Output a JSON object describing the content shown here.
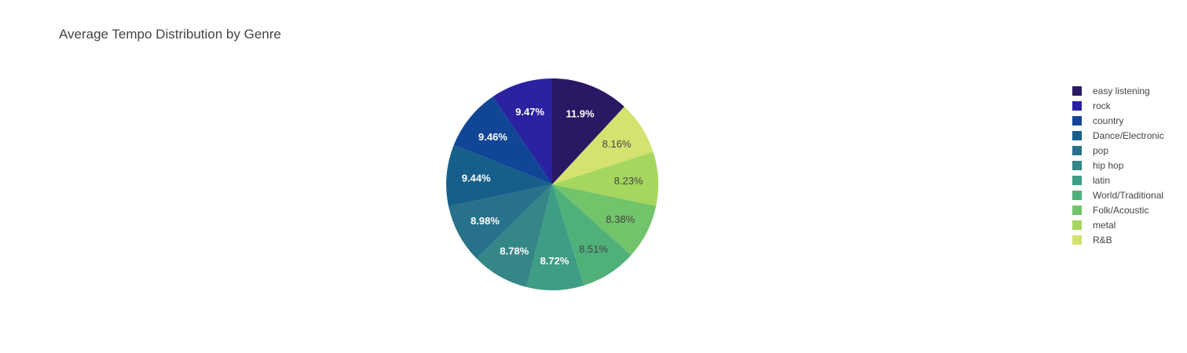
{
  "chart_data": {
    "type": "pie",
    "title": "Average Tempo Distribution by Genre",
    "legend_position": "right",
    "direction": "clockwise",
    "start": "top",
    "slices": [
      {
        "label": "easy listening",
        "percent": 11.9,
        "text": "11.9%",
        "color": "#2a1864",
        "text_color": "#ffffff"
      },
      {
        "label": "R&B",
        "percent": 8.16,
        "text": "8.16%",
        "color": "#d4e270",
        "text_color": "#444444"
      },
      {
        "label": "metal",
        "percent": 8.23,
        "text": "8.23%",
        "color": "#a5d65e",
        "text_color": "#444444"
      },
      {
        "label": "Folk/Acoustic",
        "percent": 8.38,
        "text": "8.38%",
        "color": "#72c46a",
        "text_color": "#444444"
      },
      {
        "label": "World/Traditional",
        "percent": 8.51,
        "text": "8.51%",
        "color": "#50b07a",
        "text_color": "#444444"
      },
      {
        "label": "latin",
        "percent": 8.72,
        "text": "8.72%",
        "color": "#3f9c85",
        "text_color": "#ffffff"
      },
      {
        "label": "hip hop",
        "percent": 8.78,
        "text": "8.78%",
        "color": "#348786",
        "text_color": "#ffffff"
      },
      {
        "label": "pop",
        "percent": 8.98,
        "text": "8.98%",
        "color": "#27728a",
        "text_color": "#ffffff"
      },
      {
        "label": "Dance/Electronic",
        "percent": 9.44,
        "text": "9.44%",
        "color": "#175f8b",
        "text_color": "#ffffff"
      },
      {
        "label": "country",
        "percent": 9.46,
        "text": "9.46%",
        "color": "#114696",
        "text_color": "#ffffff"
      },
      {
        "label": "rock",
        "percent": 9.47,
        "text": "9.47%",
        "color": "#2a22a0",
        "text_color": "#ffffff"
      }
    ],
    "legend_order": [
      "easy listening",
      "rock",
      "country",
      "Dance/Electronic",
      "pop",
      "hip hop",
      "latin",
      "World/Traditional",
      "Folk/Acoustic",
      "metal",
      "R&B"
    ]
  }
}
